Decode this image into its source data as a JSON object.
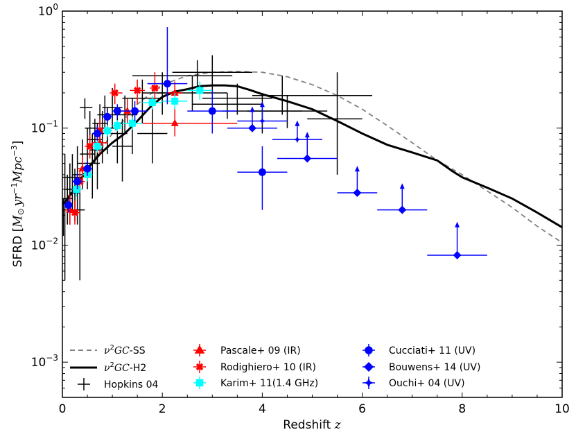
{
  "chart_data": {
    "type": "scatter",
    "xlabel": "Redshift z",
    "ylabel": "SFRD [M⊙ yr⁻¹ Mpc⁻³]",
    "xlim": [
      0,
      10
    ],
    "ylim": [
      0.0005,
      1
    ],
    "yscale": "log",
    "x_ticks": [
      0,
      2,
      4,
      6,
      8,
      10
    ],
    "x_tick_labels": [
      "0",
      "2",
      "4",
      "6",
      "8",
      "10"
    ],
    "y_ticks": [
      0.001,
      0.01,
      0.1,
      1
    ],
    "y_tick_labels": [
      {
        "base": "10",
        "exp": "−3"
      },
      {
        "base": "10",
        "exp": "−2"
      },
      {
        "base": "10",
        "exp": "−1"
      },
      {
        "base": "10",
        "exp": "0"
      }
    ],
    "legend_position": "lower-left",
    "series": [
      {
        "name": "ν2GC-SS",
        "label_main": "ν",
        "label_sup": "2",
        "label_italic": "GC",
        "label_tail": "-SS",
        "kind": "line",
        "style": "dashed",
        "color": "#808080",
        "x": [
          0,
          0.5,
          1.0,
          1.5,
          2.0,
          2.5,
          3.0,
          3.5,
          4.0,
          4.5,
          5.0,
          5.5,
          6.0,
          6.5,
          7.0,
          7.5,
          8.0,
          8.5,
          9.0,
          9.5,
          10.0
        ],
        "y": [
          0.022,
          0.045,
          0.09,
          0.16,
          0.235,
          0.28,
          0.3,
          0.305,
          0.3,
          0.275,
          0.235,
          0.19,
          0.145,
          0.105,
          0.075,
          0.053,
          0.04,
          0.029,
          0.021,
          0.0145,
          0.0105
        ]
      },
      {
        "name": "ν2GC-H2",
        "label_main": "ν",
        "label_sup": "2",
        "label_italic": "GC",
        "label_tail": "-H2",
        "kind": "line",
        "style": "solid",
        "color": "#000000",
        "x": [
          0,
          0.25,
          0.5,
          0.75,
          1.0,
          1.25,
          1.5,
          1.75,
          2.0,
          2.25,
          2.5,
          2.75,
          3.0,
          3.25,
          3.5,
          3.75,
          4.0,
          4.5,
          5.0,
          5.5,
          6.0,
          6.5,
          7.0,
          7.5,
          7.8,
          8.0,
          8.5,
          9.0,
          9.5,
          10.0
        ],
        "y": [
          0.022,
          0.03,
          0.045,
          0.06,
          0.075,
          0.09,
          0.115,
          0.15,
          0.185,
          0.205,
          0.215,
          0.228,
          0.232,
          0.232,
          0.228,
          0.212,
          0.195,
          0.17,
          0.145,
          0.115,
          0.09,
          0.072,
          0.062,
          0.053,
          0.043,
          0.038,
          0.031,
          0.025,
          0.019,
          0.0142
        ]
      },
      {
        "name": "Hopkins 04",
        "kind": "errorbar",
        "marker": "none",
        "color": "#000000",
        "points": [
          {
            "x": 0.02,
            "y": 0.018,
            "xlo": 0.0,
            "xhi": 0.05,
            "ylo": 0.012,
            "yhi": 0.025
          },
          {
            "x": 0.05,
            "y": 0.02,
            "xlo": 0.0,
            "xhi": 0.12,
            "ylo": 0.005,
            "yhi": 0.06
          },
          {
            "x": 0.1,
            "y": 0.025,
            "xlo": 0.0,
            "xhi": 0.2,
            "ylo": 0.015,
            "yhi": 0.04
          },
          {
            "x": 0.15,
            "y": 0.03,
            "xlo": 0.05,
            "xhi": 0.25,
            "ylo": 0.015,
            "yhi": 0.05
          },
          {
            "x": 0.2,
            "y": 0.038,
            "xlo": 0.0,
            "xhi": 0.4,
            "ylo": 0.02,
            "yhi": 0.06
          },
          {
            "x": 0.25,
            "y": 0.028,
            "xlo": 0.15,
            "xhi": 0.35,
            "ylo": 0.016,
            "yhi": 0.045
          },
          {
            "x": 0.3,
            "y": 0.04,
            "xlo": 0.2,
            "xhi": 0.4,
            "ylo": 0.015,
            "yhi": 0.07
          },
          {
            "x": 0.35,
            "y": 0.02,
            "xlo": 0.25,
            "xhi": 0.45,
            "ylo": 0.005,
            "yhi": 0.035
          },
          {
            "x": 0.4,
            "y": 0.05,
            "xlo": 0.3,
            "xhi": 0.5,
            "ylo": 0.03,
            "yhi": 0.08
          },
          {
            "x": 0.45,
            "y": 0.15,
            "xlo": 0.35,
            "xhi": 0.6,
            "ylo": 0.12,
            "yhi": 0.18
          },
          {
            "x": 0.5,
            "y": 0.06,
            "xlo": 0.35,
            "xhi": 0.65,
            "ylo": 0.03,
            "yhi": 0.1
          },
          {
            "x": 0.55,
            "y": 0.1,
            "xlo": 0.45,
            "xhi": 0.7,
            "ylo": 0.07,
            "yhi": 0.14
          },
          {
            "x": 0.6,
            "y": 0.05,
            "xlo": 0.45,
            "xhi": 0.75,
            "ylo": 0.025,
            "yhi": 0.09
          },
          {
            "x": 0.65,
            "y": 0.08,
            "xlo": 0.5,
            "xhi": 0.8,
            "ylo": 0.05,
            "yhi": 0.12
          },
          {
            "x": 0.7,
            "y": 0.065,
            "xlo": 0.55,
            "xhi": 0.85,
            "ylo": 0.03,
            "yhi": 0.11
          },
          {
            "x": 0.75,
            "y": 0.11,
            "xlo": 0.6,
            "xhi": 0.9,
            "ylo": 0.07,
            "yhi": 0.16
          },
          {
            "x": 0.8,
            "y": 0.09,
            "xlo": 0.65,
            "xhi": 0.95,
            "ylo": 0.05,
            "yhi": 0.14
          },
          {
            "x": 0.85,
            "y": 0.13,
            "xlo": 0.7,
            "xhi": 1.0,
            "ylo": 0.09,
            "yhi": 0.19
          },
          {
            "x": 0.9,
            "y": 0.1,
            "xlo": 0.75,
            "xhi": 1.05,
            "ylo": 0.06,
            "yhi": 0.15
          },
          {
            "x": 1.0,
            "y": 0.15,
            "xlo": 0.8,
            "xhi": 1.2,
            "ylo": 0.1,
            "yhi": 0.22
          },
          {
            "x": 1.1,
            "y": 0.09,
            "xlo": 0.9,
            "xhi": 1.3,
            "ylo": 0.05,
            "yhi": 0.14
          },
          {
            "x": 1.2,
            "y": 0.07,
            "xlo": 1.0,
            "xhi": 1.4,
            "ylo": 0.035,
            "yhi": 0.12
          },
          {
            "x": 1.25,
            "y": 0.13,
            "xlo": 1.0,
            "xhi": 1.5,
            "ylo": 0.09,
            "yhi": 0.19
          },
          {
            "x": 1.4,
            "y": 0.11,
            "xlo": 1.1,
            "xhi": 1.7,
            "ylo": 0.06,
            "yhi": 0.18
          },
          {
            "x": 1.6,
            "y": 0.18,
            "xlo": 1.2,
            "xhi": 2.0,
            "ylo": 0.11,
            "yhi": 0.26
          },
          {
            "x": 1.8,
            "y": 0.09,
            "xlo": 1.5,
            "xhi": 2.1,
            "ylo": 0.05,
            "yhi": 0.15
          },
          {
            "x": 2.0,
            "y": 0.2,
            "xlo": 1.6,
            "xhi": 2.4,
            "ylo": 0.13,
            "yhi": 0.3
          },
          {
            "x": 2.7,
            "y": 0.28,
            "xlo": 1.4,
            "xhi": 3.4,
            "ylo": 0.2,
            "yhi": 0.38
          },
          {
            "x": 3.0,
            "y": 0.3,
            "xlo": 2.2,
            "xhi": 3.8,
            "ylo": 0.2,
            "yhi": 0.42
          },
          {
            "x": 2.6,
            "y": 0.2,
            "xlo": 1.9,
            "xhi": 3.3,
            "ylo": 0.14,
            "yhi": 0.28
          },
          {
            "x": 3.3,
            "y": 0.16,
            "xlo": 2.6,
            "xhi": 4.0,
            "ylo": 0.12,
            "yhi": 0.2
          },
          {
            "x": 4.0,
            "y": 0.14,
            "xlo": 3.2,
            "xhi": 4.8,
            "ylo": 0.09,
            "yhi": 0.2
          },
          {
            "x": 3.5,
            "y": 0.18,
            "xlo": 2.8,
            "xhi": 4.2,
            "ylo": 0.13,
            "yhi": 0.24
          },
          {
            "x": 4.5,
            "y": 0.14,
            "xlo": 3.7,
            "xhi": 5.3,
            "ylo": 0.1,
            "yhi": 0.19
          },
          {
            "x": 4.4,
            "y": 0.19,
            "xlo": 3.8,
            "xhi": 6.2,
            "ylo": 0.13,
            "yhi": 0.28
          },
          {
            "x": 5.5,
            "y": 0.12,
            "xlo": 4.9,
            "xhi": 6.0,
            "ylo": 0.04,
            "yhi": 0.3
          }
        ]
      },
      {
        "name": "Pascale+ 09 (IR)",
        "kind": "errorbar",
        "marker": "triangle",
        "color": "#ff0000",
        "points": [
          {
            "x": 0.15,
            "y": 0.02,
            "xlo": 0.05,
            "xhi": 0.25,
            "ylo": 0.015,
            "yhi": 0.027
          },
          {
            "x": 0.4,
            "y": 0.045,
            "xlo": 0.3,
            "xhi": 0.5,
            "ylo": 0.035,
            "yhi": 0.058
          },
          {
            "x": 0.75,
            "y": 0.075,
            "xlo": 0.6,
            "xhi": 0.9,
            "ylo": 0.06,
            "yhi": 0.095
          },
          {
            "x": 1.3,
            "y": 0.14,
            "xlo": 1.1,
            "xhi": 1.5,
            "ylo": 0.11,
            "yhi": 0.18
          },
          {
            "x": 2.25,
            "y": 0.11,
            "xlo": 1.5,
            "xhi": 3.5,
            "ylo": 0.085,
            "yhi": 0.15
          },
          {
            "x": 2.25,
            "y": 0.2,
            "xlo": 2.1,
            "xhi": 2.4,
            "ylo": 0.16,
            "yhi": 0.25
          }
        ]
      },
      {
        "name": "Rodighiero+ 10 (IR)",
        "kind": "errorbar",
        "marker": "x",
        "color": "#ff0000",
        "points": [
          {
            "x": 0.25,
            "y": 0.019,
            "xlo": 0.15,
            "xhi": 0.35,
            "ylo": 0.015,
            "yhi": 0.024
          },
          {
            "x": 0.35,
            "y": 0.035,
            "xlo": 0.25,
            "xhi": 0.45,
            "ylo": 0.028,
            "yhi": 0.044
          },
          {
            "x": 0.55,
            "y": 0.07,
            "xlo": 0.45,
            "xhi": 0.65,
            "ylo": 0.055,
            "yhi": 0.088
          },
          {
            "x": 0.75,
            "y": 0.095,
            "xlo": 0.65,
            "xhi": 0.85,
            "ylo": 0.077,
            "yhi": 0.12
          },
          {
            "x": 1.05,
            "y": 0.2,
            "xlo": 0.95,
            "xhi": 1.2,
            "ylo": 0.16,
            "yhi": 0.24
          },
          {
            "x": 1.5,
            "y": 0.21,
            "xlo": 1.35,
            "xhi": 1.65,
            "ylo": 0.16,
            "yhi": 0.26
          },
          {
            "x": 1.85,
            "y": 0.22,
            "xlo": 1.75,
            "xhi": 1.95,
            "ylo": 0.16,
            "yhi": 0.3
          }
        ]
      },
      {
        "name": "Karim+ 11(1.4 GHz)",
        "kind": "errorbar",
        "marker": "square",
        "color": "#00ffff",
        "points": [
          {
            "x": 0.28,
            "y": 0.03,
            "xlo": 0.2,
            "xhi": 0.4,
            "ylo": 0.026,
            "yhi": 0.035
          },
          {
            "x": 0.5,
            "y": 0.04,
            "xlo": 0.4,
            "xhi": 0.6,
            "ylo": 0.035,
            "yhi": 0.046
          },
          {
            "x": 0.7,
            "y": 0.07,
            "xlo": 0.6,
            "xhi": 0.8,
            "ylo": 0.062,
            "yhi": 0.079
          },
          {
            "x": 0.9,
            "y": 0.095,
            "xlo": 0.8,
            "xhi": 1.0,
            "ylo": 0.085,
            "yhi": 0.106
          },
          {
            "x": 1.1,
            "y": 0.105,
            "xlo": 1.0,
            "xhi": 1.2,
            "ylo": 0.094,
            "yhi": 0.117
          },
          {
            "x": 1.4,
            "y": 0.11,
            "xlo": 1.2,
            "xhi": 1.6,
            "ylo": 0.097,
            "yhi": 0.125
          },
          {
            "x": 1.8,
            "y": 0.165,
            "xlo": 1.6,
            "xhi": 2.0,
            "ylo": 0.145,
            "yhi": 0.19
          },
          {
            "x": 2.25,
            "y": 0.17,
            "xlo": 2.0,
            "xhi": 2.5,
            "ylo": 0.145,
            "yhi": 0.2
          },
          {
            "x": 2.75,
            "y": 0.21,
            "xlo": 2.5,
            "xhi": 3.0,
            "ylo": 0.175,
            "yhi": 0.25
          }
        ]
      },
      {
        "name": "Cucciati+ 11 (UV)",
        "kind": "errorbar",
        "marker": "circle",
        "color": "#0000ff",
        "points": [
          {
            "x": 0.12,
            "y": 0.022,
            "xlo": 0.05,
            "xhi": 0.2,
            "ylo": 0.019,
            "yhi": 0.025
          },
          {
            "x": 0.3,
            "y": 0.035,
            "xlo": 0.2,
            "xhi": 0.4,
            "ylo": 0.03,
            "yhi": 0.041
          },
          {
            "x": 0.5,
            "y": 0.045,
            "xlo": 0.4,
            "xhi": 0.6,
            "ylo": 0.039,
            "yhi": 0.052
          },
          {
            "x": 0.7,
            "y": 0.09,
            "xlo": 0.6,
            "xhi": 0.8,
            "ylo": 0.078,
            "yhi": 0.104
          },
          {
            "x": 0.9,
            "y": 0.125,
            "xlo": 0.8,
            "xhi": 1.0,
            "ylo": 0.11,
            "yhi": 0.142
          },
          {
            "x": 1.1,
            "y": 0.14,
            "xlo": 1.0,
            "xhi": 1.2,
            "ylo": 0.122,
            "yhi": 0.16
          },
          {
            "x": 1.45,
            "y": 0.14,
            "xlo": 1.2,
            "xhi": 1.7,
            "ylo": 0.115,
            "yhi": 0.17
          },
          {
            "x": 2.1,
            "y": 0.24,
            "xlo": 1.7,
            "xhi": 2.5,
            "ylo": 0.16,
            "yhi": 0.73
          },
          {
            "x": 3.0,
            "y": 0.14,
            "xlo": 2.5,
            "xhi": 3.5,
            "ylo": 0.09,
            "yhi": 0.21
          },
          {
            "x": 4.0,
            "y": 0.042,
            "xlo": 3.5,
            "xhi": 4.5,
            "ylo": 0.02,
            "yhi": 0.07
          }
        ]
      },
      {
        "name": "Bouwens+ 14 (UV)",
        "kind": "errorbar",
        "marker": "diamond",
        "color": "#0000ff",
        "points": [
          {
            "x": 3.8,
            "y": 0.1,
            "xlo": 3.3,
            "xhi": 4.3,
            "ylo": 0.1,
            "yhi": 0.1,
            "uplim_to": 0.145
          },
          {
            "x": 4.9,
            "y": 0.055,
            "xlo": 4.3,
            "xhi": 5.5,
            "ylo": 0.055,
            "yhi": 0.055,
            "uplim_to": 0.088
          },
          {
            "x": 5.9,
            "y": 0.028,
            "xlo": 5.5,
            "xhi": 6.3,
            "ylo": 0.028,
            "yhi": 0.028,
            "uplim_to": 0.045
          },
          {
            "x": 6.8,
            "y": 0.02,
            "xlo": 6.3,
            "xhi": 7.3,
            "ylo": 0.02,
            "yhi": 0.02,
            "uplim_to": 0.032
          },
          {
            "x": 7.9,
            "y": 0.0082,
            "xlo": 7.3,
            "xhi": 8.5,
            "ylo": 0.0082,
            "yhi": 0.0082,
            "uplim_to": 0.015
          }
        ]
      },
      {
        "name": "Ouchi+ 04 (UV)",
        "kind": "errorbar",
        "marker": "star",
        "color": "#0000ff",
        "points": [
          {
            "x": 4.0,
            "y": 0.115,
            "xlo": 3.5,
            "xhi": 4.5,
            "ylo": 0.115,
            "yhi": 0.115,
            "uplim_to": 0.16
          },
          {
            "x": 4.7,
            "y": 0.08,
            "xlo": 4.2,
            "xhi": 5.2,
            "ylo": 0.08,
            "yhi": 0.08,
            "uplim_to": 0.11
          }
        ]
      }
    ]
  },
  "legend": {
    "hopkins_label": "Hopkins 04",
    "pascale_label": "Pascale+ 09 (IR)",
    "rodighiero_label": "Rodighiero+ 10 (IR)",
    "karim_label": "Karim+ 11(1.4 GHz)",
    "cucciati_label": "Cucciati+ 11 (UV)",
    "bouwens_label": "Bouwens+ 14 (UV)",
    "ouchi_label": "Ouchi+ 04 (UV)"
  },
  "axes": {
    "xlabel_text": "Redshift ",
    "xlabel_var": "z",
    "ylabel_prefix": "SFRD [",
    "ylabel_m": "M",
    "ylabel_sun": "⊙",
    "ylabel_yr": "yr",
    "ylabel_yr_exp": "−1",
    "ylabel_mpc": "Mpc",
    "ylabel_mpc_exp": "−3",
    "ylabel_suffix": "]"
  },
  "colors": {
    "black": "#000000",
    "gray": "#808080",
    "red": "#ff0000",
    "cyan": "#00ffff",
    "blue": "#0000ff"
  }
}
